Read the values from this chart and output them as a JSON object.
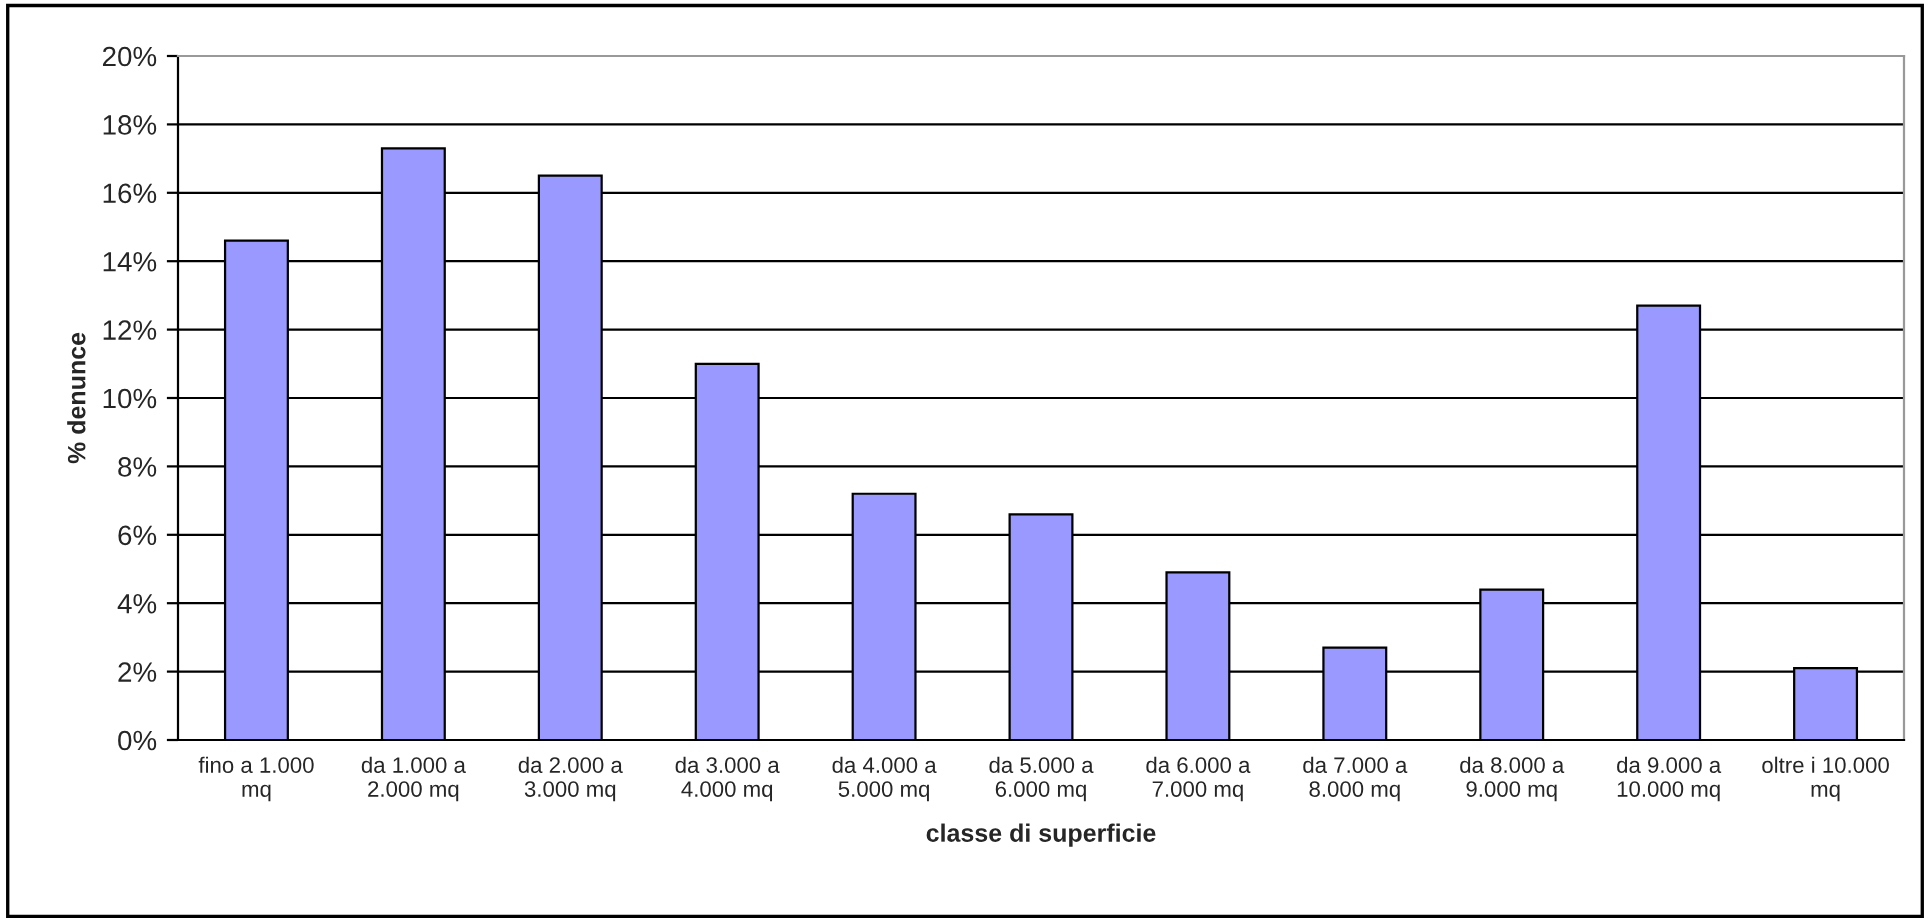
{
  "chart_data": {
    "type": "bar",
    "xlabel": "classe di superficie",
    "ylabel": "% denunce",
    "categories": [
      "fino a 1.000\nmq",
      "da 1.000 a\n2.000 mq",
      "da 2.000 a\n3.000 mq",
      "da 3.000 a\n4.000 mq",
      "da 4.000 a\n5.000 mq",
      "da 5.000 a\n6.000 mq",
      "da 6.000 a\n7.000 mq",
      "da 7.000 a\n8.000 mq",
      "da 8.000 a\n9.000 mq",
      "da 9.000 a\n10.000 mq",
      "oltre i 10.000\nmq"
    ],
    "values": [
      14.6,
      17.3,
      16.5,
      11.0,
      7.2,
      6.6,
      4.9,
      2.7,
      4.4,
      12.7,
      2.1
    ],
    "color": "#9999ff",
    "ylim": [
      0,
      20
    ],
    "yticks": [
      {
        "value": 0,
        "label": "0%"
      },
      {
        "value": 2,
        "label": "2%"
      },
      {
        "value": 4,
        "label": "4%"
      },
      {
        "value": 6,
        "label": "6%"
      },
      {
        "value": 8,
        "label": "8%"
      },
      {
        "value": 10,
        "label": "10%"
      },
      {
        "value": 12,
        "label": "12%"
      },
      {
        "value": 14,
        "label": "14%"
      },
      {
        "value": 16,
        "label": "16%"
      },
      {
        "value": 18,
        "label": "18%"
      },
      {
        "value": 20,
        "label": "20%"
      }
    ],
    "grid": "y",
    "legend": false
  }
}
